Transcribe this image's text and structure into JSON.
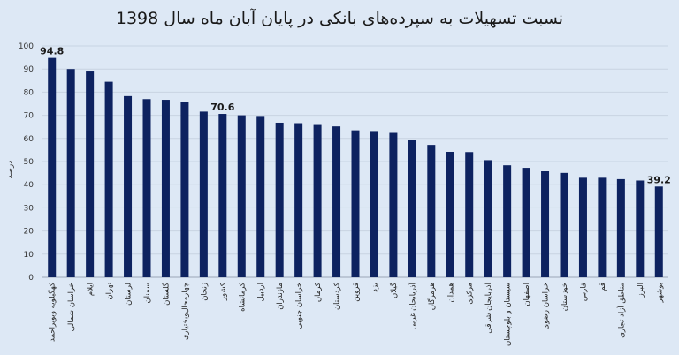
{
  "chart_data": {
    "type": "bar",
    "title": "نسبت تسهیلات به سپرده‌های بانکی در پایان آبان ماه سال 1398",
    "xlabel": "",
    "ylabel": "درصد",
    "ylim": [
      0,
      100
    ],
    "yticks": [
      0,
      10,
      20,
      30,
      40,
      50,
      60,
      70,
      80,
      90,
      100
    ],
    "grid": true,
    "legend": "none",
    "bar_color": "#0d2260",
    "categories": [
      "کهگیلویه وبویراحمد",
      "خراسان شمالی",
      "ایلام",
      "تهران",
      "لرستان",
      "سمنان",
      "گلستان",
      "چهارمحال‌وبختیاری",
      "زنجان",
      "کشور",
      "کرمانشاه",
      "اردبیل",
      "مازندران",
      "خراسان جنوبی",
      "کرمان",
      "کردستان",
      "قزوین",
      "یزد",
      "گیلان",
      "آذربایجان غربی",
      "هرمزگان",
      "همدان",
      "مرکزی",
      "آذربایجان شرقی",
      "سیستان و بلوچستان",
      "اصفهان",
      "خراسان رضوی",
      "خوزستان",
      "فارس",
      "قم",
      "مناطق آزاد تجاری",
      "البرز",
      "بوشهر"
    ],
    "values": [
      94.8,
      90,
      89.3,
      84.5,
      78.3,
      77,
      76.7,
      75.8,
      71.6,
      70.6,
      70,
      69.7,
      66.8,
      66.6,
      66.2,
      65.2,
      63.5,
      63.2,
      62.4,
      59.2,
      57.2,
      54.2,
      54.1,
      50.6,
      48.4,
      47.3,
      45.8,
      45.1,
      43,
      43,
      42.4,
      41.8,
      39.2
    ],
    "data_labels": [
      {
        "index": 0,
        "text": "94.8"
      },
      {
        "index": 9,
        "text": "70.6"
      },
      {
        "index": 32,
        "text": "39.2"
      }
    ]
  }
}
